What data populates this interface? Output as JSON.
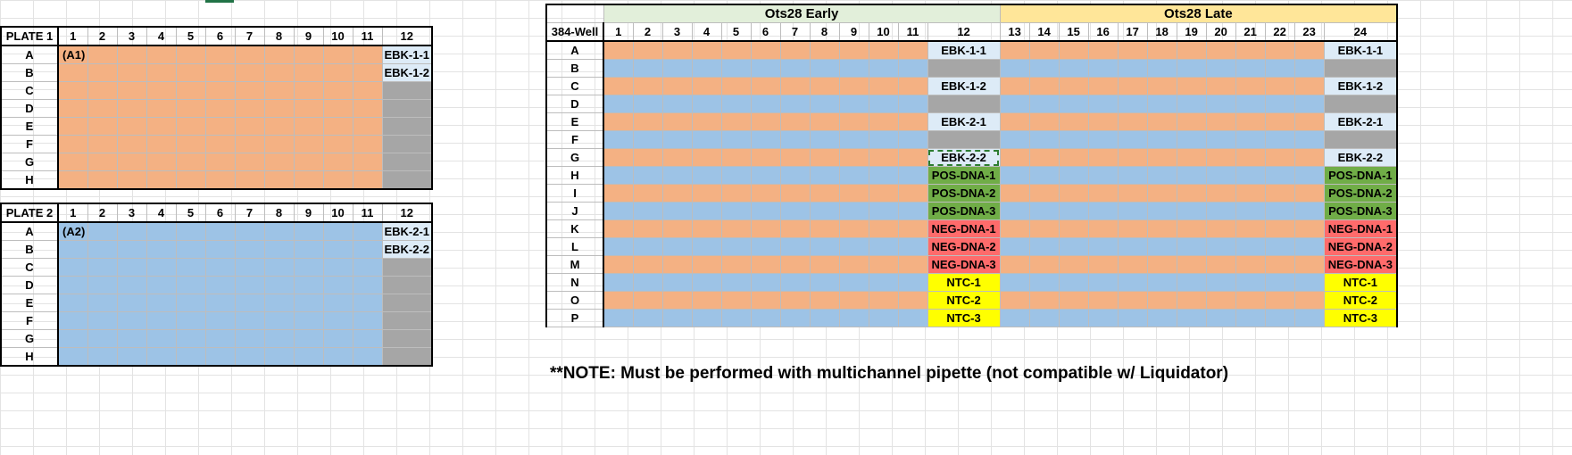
{
  "plate1": {
    "title": "PLATE 1",
    "columns": [
      "1",
      "2",
      "3",
      "4",
      "5",
      "6",
      "7",
      "8",
      "9",
      "10",
      "11",
      "12"
    ],
    "rows": [
      "A",
      "B",
      "C",
      "D",
      "E",
      "F",
      "G",
      "H"
    ],
    "first_well": "(A1)",
    "col12": [
      "EBK-1-1",
      "EBK-1-2",
      "",
      "",
      "",
      "",
      "",
      ""
    ]
  },
  "plate2": {
    "title": "PLATE 2",
    "columns": [
      "1",
      "2",
      "3",
      "4",
      "5",
      "6",
      "7",
      "8",
      "9",
      "10",
      "11",
      "12"
    ],
    "rows": [
      "A",
      "B",
      "C",
      "D",
      "E",
      "F",
      "G",
      "H"
    ],
    "first_well": "(A2)",
    "col12": [
      "EBK-2-1",
      "EBK-2-2",
      "",
      "",
      "",
      "",
      "",
      ""
    ]
  },
  "well384": {
    "title": "384-Well",
    "group_early": "Ots28 Early",
    "group_late": "Ots28 Late",
    "columns": [
      "1",
      "2",
      "3",
      "4",
      "5",
      "6",
      "7",
      "8",
      "9",
      "10",
      "11",
      "12",
      "13",
      "14",
      "15",
      "16",
      "17",
      "18",
      "19",
      "20",
      "21",
      "22",
      "23",
      "24"
    ],
    "rows": [
      "A",
      "B",
      "C",
      "D",
      "E",
      "F",
      "G",
      "H",
      "I",
      "J",
      "K",
      "L",
      "M",
      "N",
      "O",
      "P"
    ],
    "col12": [
      "EBK-1-1",
      "",
      "EBK-1-2",
      "",
      "EBK-2-1",
      "",
      "EBK-2-2",
      "POS-DNA-1",
      "POS-DNA-2",
      "POS-DNA-3",
      "NEG-DNA-1",
      "NEG-DNA-2",
      "NEG-DNA-3",
      "NTC-1",
      "NTC-2",
      "NTC-3"
    ],
    "col24": [
      "EBK-1-1",
      "",
      "EBK-1-2",
      "",
      "EBK-2-1",
      "",
      "EBK-2-2",
      "POS-DNA-1",
      "POS-DNA-2",
      "POS-DNA-3",
      "NEG-DNA-1",
      "NEG-DNA-2",
      "NEG-DNA-3",
      "NTC-1",
      "NTC-2",
      "NTC-3"
    ]
  },
  "note": "**NOTE: Must be performed with multichannel pipette (not compatible w/ Liquidator)",
  "colors": {
    "orange": "#f4b183",
    "blue": "#9dc3e6",
    "gray": "#a6a6a6",
    "ebk": "#ddebf7",
    "pos": "#70ad47",
    "neg": "#ff6b6b",
    "ntc": "#ffff00",
    "early_header": "#e2efda",
    "late_header": "#ffe699"
  }
}
